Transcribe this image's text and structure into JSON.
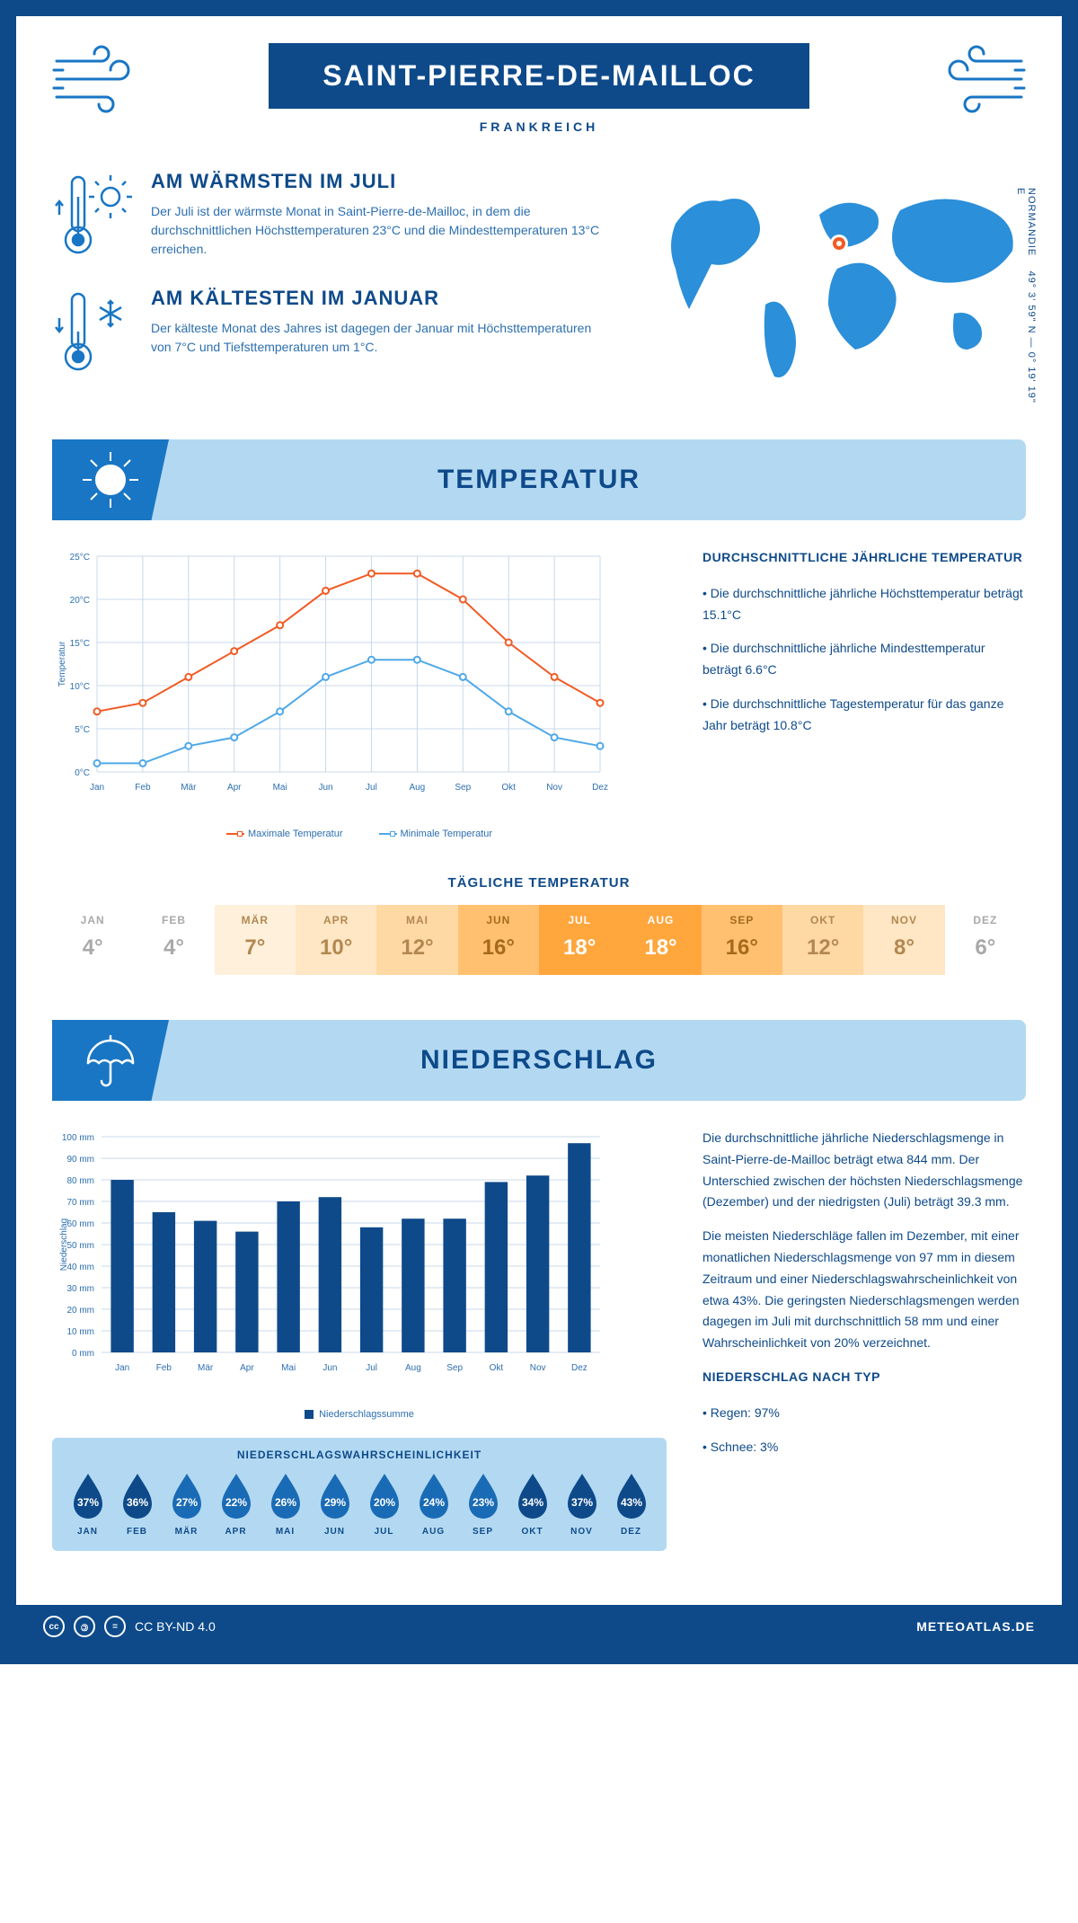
{
  "header": {
    "title": "SAINT-PIERRE-DE-MAILLOC",
    "subtitle": "FRANKREICH",
    "coords_lat": "49° 3' 59\" N",
    "coords_lon": "0° 19' 19\" E",
    "region": "NORMANDIE"
  },
  "facts": {
    "warm": {
      "title": "AM WÄRMSTEN IM JULI",
      "text": "Der Juli ist der wärmste Monat in Saint-Pierre-de-Mailloc, in dem die durchschnittlichen Höchsttemperaturen 23°C und die Mindesttemperaturen 13°C erreichen."
    },
    "cold": {
      "title": "AM KÄLTESTEN IM JANUAR",
      "text": "Der kälteste Monat des Jahres ist dagegen der Januar mit Höchsttemperaturen von 7°C und Tiefsttemperaturen um 1°C."
    }
  },
  "temperature": {
    "section_title": "TEMPERATUR",
    "chart": {
      "months": [
        "Jan",
        "Feb",
        "Mär",
        "Apr",
        "Mai",
        "Jun",
        "Jul",
        "Aug",
        "Sep",
        "Okt",
        "Nov",
        "Dez"
      ],
      "max_series": {
        "label": "Maximale Temperatur",
        "color": "#f15a24",
        "values": [
          7,
          8,
          11,
          14,
          17,
          21,
          23,
          23,
          20,
          15,
          11,
          8
        ]
      },
      "min_series": {
        "label": "Minimale Temperatur",
        "color": "#4fa8e8",
        "values": [
          1,
          1,
          3,
          4,
          7,
          11,
          13,
          13,
          11,
          7,
          4,
          3
        ]
      },
      "ylabel": "Temperatur",
      "ylim": [
        0,
        25
      ],
      "ytick_step": 5,
      "grid_color": "#c8d8e8",
      "point_radius": 3.5,
      "line_width": 2
    },
    "info_title": "DURCHSCHNITTLICHE JÄHRLICHE TEMPERATUR",
    "info_points": [
      "• Die durchschnittliche jährliche Höchsttemperatur beträgt 15.1°C",
      "• Die durchschnittliche jährliche Mindesttemperatur beträgt 6.6°C",
      "• Die durchschnittliche Tagestemperatur für das ganze Jahr beträgt 10.8°C"
    ],
    "daily": {
      "title": "TÄGLICHE TEMPERATUR",
      "months": [
        "JAN",
        "FEB",
        "MÄR",
        "APR",
        "MAI",
        "JUN",
        "JUL",
        "AUG",
        "SEP",
        "OKT",
        "NOV",
        "DEZ"
      ],
      "values": [
        "4°",
        "4°",
        "7°",
        "10°",
        "12°",
        "16°",
        "18°",
        "18°",
        "16°",
        "12°",
        "8°",
        "6°"
      ],
      "bg_colors": [
        "#ffffff",
        "#ffffff",
        "#fff0dc",
        "#ffe6c4",
        "#ffd9a3",
        "#ffc170",
        "#ffa63d",
        "#ffa63d",
        "#ffc170",
        "#ffd9a3",
        "#ffe6c4",
        "#ffffff"
      ],
      "text_colors": [
        "#a9a9a9",
        "#a9a9a9",
        "#b28850",
        "#b28850",
        "#b28850",
        "#a66a1e",
        "#ffffff",
        "#ffffff",
        "#a66a1e",
        "#b28850",
        "#b28850",
        "#a9a9a9"
      ]
    }
  },
  "precipitation": {
    "section_title": "NIEDERSCHLAG",
    "chart": {
      "months": [
        "Jan",
        "Feb",
        "Mär",
        "Apr",
        "Mai",
        "Jun",
        "Jul",
        "Aug",
        "Sep",
        "Okt",
        "Nov",
        "Dez"
      ],
      "values": [
        80,
        65,
        61,
        56,
        70,
        72,
        58,
        62,
        62,
        79,
        82,
        97
      ],
      "bar_color": "#0e4a8a",
      "ylabel": "Niederschlag",
      "ylim": [
        0,
        100
      ],
      "ytick_step": 10,
      "grid_color": "#c8d8e8",
      "legend_label": "Niederschlagssumme",
      "bar_width": 0.55
    },
    "text_paras": [
      "Die durchschnittliche jährliche Niederschlagsmenge in Saint-Pierre-de-Mailloc beträgt etwa 844 mm. Der Unterschied zwischen der höchsten Niederschlagsmenge (Dezember) und der niedrigsten (Juli) beträgt 39.3 mm.",
      "Die meisten Niederschläge fallen im Dezember, mit einer monatlichen Niederschlagsmenge von 97 mm in diesem Zeitraum und einer Niederschlagswahrscheinlichkeit von etwa 43%. Die geringsten Niederschlagsmengen werden dagegen im Juli mit durchschnittlich 58 mm und einer Wahrscheinlichkeit von 20% verzeichnet."
    ],
    "type_title": "NIEDERSCHLAG NACH TYP",
    "type_points": [
      "• Regen: 97%",
      "• Schnee: 3%"
    ],
    "probability": {
      "title": "NIEDERSCHLAGSWAHRSCHEINLICHKEIT",
      "months": [
        "JAN",
        "FEB",
        "MÄR",
        "APR",
        "MAI",
        "JUN",
        "JUL",
        "AUG",
        "SEP",
        "OKT",
        "NOV",
        "DEZ"
      ],
      "values": [
        37,
        36,
        27,
        22,
        26,
        29,
        20,
        24,
        23,
        34,
        37,
        43
      ],
      "fill_dark": "#0e4a8a",
      "fill_light": "#6fb4ea"
    }
  },
  "footer": {
    "license": "CC BY-ND 4.0",
    "site": "METEOATLAS.DE"
  },
  "colors": {
    "primary": "#0e4a8a",
    "accent": "#1976c4",
    "banner": "#b3d9f2"
  }
}
